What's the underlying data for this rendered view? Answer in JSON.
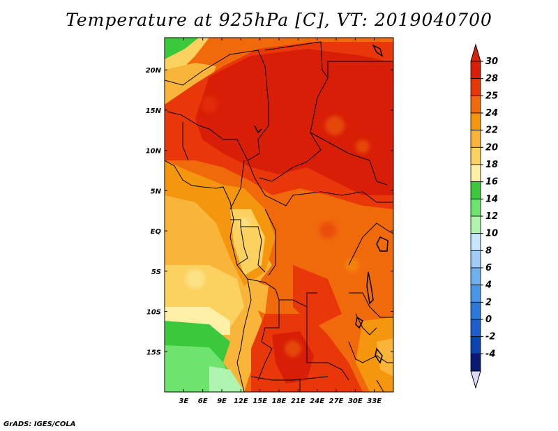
{
  "title": "Temperature at 925hPa [C], VT: 2019040700",
  "credit": "GrADS: IGES/COLA",
  "map": {
    "lon_range": [
      0,
      36
    ],
    "lat_range": [
      -20,
      24
    ],
    "lon_ticks": [
      "3E",
      "6E",
      "9E",
      "12E",
      "15E",
      "18E",
      "21E",
      "24E",
      "27E",
      "30E",
      "33E"
    ],
    "lat_ticks": [
      "20N",
      "15N",
      "10N",
      "5N",
      "EQ",
      "5S",
      "10S",
      "15S"
    ],
    "icons": [
      "country-boundaries",
      "coastline",
      "lakes"
    ]
  },
  "colorbar": {
    "labels": [
      "30",
      "28",
      "25",
      "24",
      "22",
      "20",
      "18",
      "16",
      "14",
      "12",
      "10",
      "8",
      "6",
      "4",
      "2",
      "0",
      "-2",
      "-4"
    ],
    "colors_top_to_bottom": [
      "#d81e06",
      "#e83708",
      "#f06a0c",
      "#f5960f",
      "#f9b43a",
      "#fbd15f",
      "#fdf0a6",
      "#3cc83c",
      "#6ee46e",
      "#aef3ae",
      "#c7e6fb",
      "#9fcdf6",
      "#6fb0ef",
      "#4796e8",
      "#2a78da",
      "#1a5fcc",
      "#0c44b2",
      "#081a72"
    ],
    "over_color": "#d8230a",
    "under_color": "#dcdcfa"
  }
}
